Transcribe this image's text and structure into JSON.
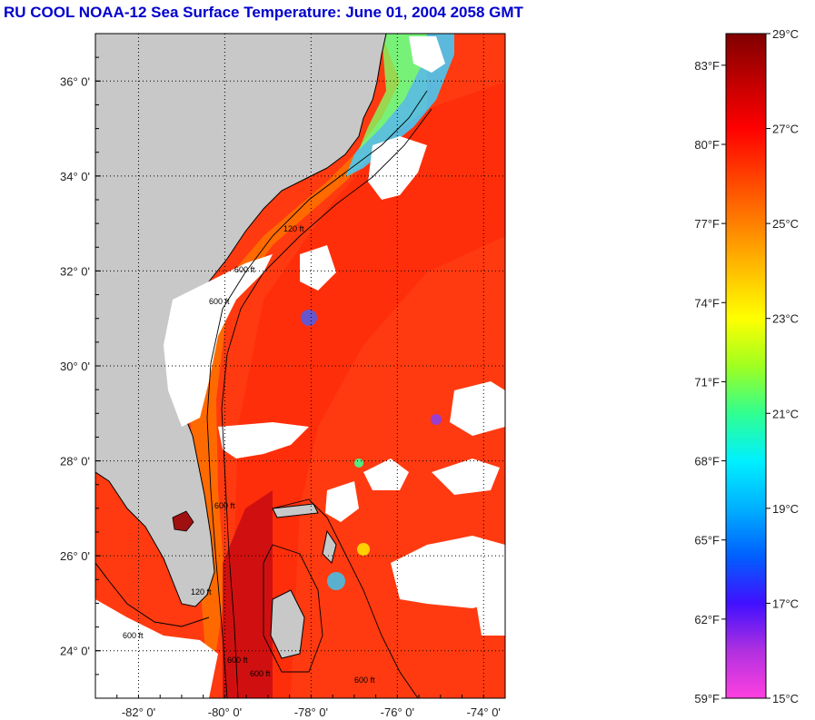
{
  "title": "RU COOL  NOAA-12  Sea Surface Temperature:  June 01, 2004 2058 GMT",
  "map": {
    "lon_range": [
      -83,
      -73.5
    ],
    "lat_range": [
      23,
      37
    ],
    "lat_labels": [
      "36° 0'",
      "34° 0'",
      "32° 0'",
      "30° 0'",
      "28° 0'",
      "26° 0'",
      "24° 0'"
    ],
    "lat_values": [
      36,
      34,
      32,
      30,
      28,
      26,
      24
    ],
    "lon_labels": [
      "-82° 0'",
      "-80° 0'",
      "-78° 0'",
      "-76° 0'",
      "-74° 0'"
    ],
    "lon_values": [
      -82,
      -80,
      -78,
      -76,
      -74
    ],
    "colors": {
      "land": "#c8c8c8",
      "cloud": "#ffffff",
      "ocean_warm": "#ff3a10",
      "ocean_hot": "#d01010",
      "gulfstream": "#ff5a00",
      "shelf_cool": "#ffb000",
      "nearshore_cold": "#3fd0ff",
      "lake": "#a01010"
    },
    "contour_labels": [
      "600 ft",
      "120 ft",
      "600 ft",
      "600 ft",
      "120 ft",
      "600 ft",
      "600 ft",
      "600 ft",
      "600 ft"
    ]
  },
  "colorbar": {
    "celsius_labels": [
      "29°C",
      "27°C",
      "25°C",
      "23°C",
      "21°C",
      "19°C",
      "17°C",
      "15°C"
    ],
    "celsius_values": [
      29,
      27,
      25,
      23,
      21,
      19,
      17,
      15
    ],
    "fahrenheit_labels": [
      "83°F",
      "80°F",
      "77°F",
      "74°F",
      "71°F",
      "68°F",
      "65°F",
      "62°F",
      "59°F"
    ],
    "fahrenheit_values": [
      83,
      80,
      77,
      74,
      71,
      68,
      65,
      62,
      59
    ],
    "range_c": [
      15,
      29
    ],
    "gradient_colors": [
      "#ff40e0",
      "#b030e0",
      "#4010ff",
      "#0060ff",
      "#00b0ff",
      "#00f0ff",
      "#30ff90",
      "#a0ff20",
      "#ffff00",
      "#ffc000",
      "#ff8000",
      "#ff4000",
      "#ff0000",
      "#c00000",
      "#800000"
    ]
  }
}
